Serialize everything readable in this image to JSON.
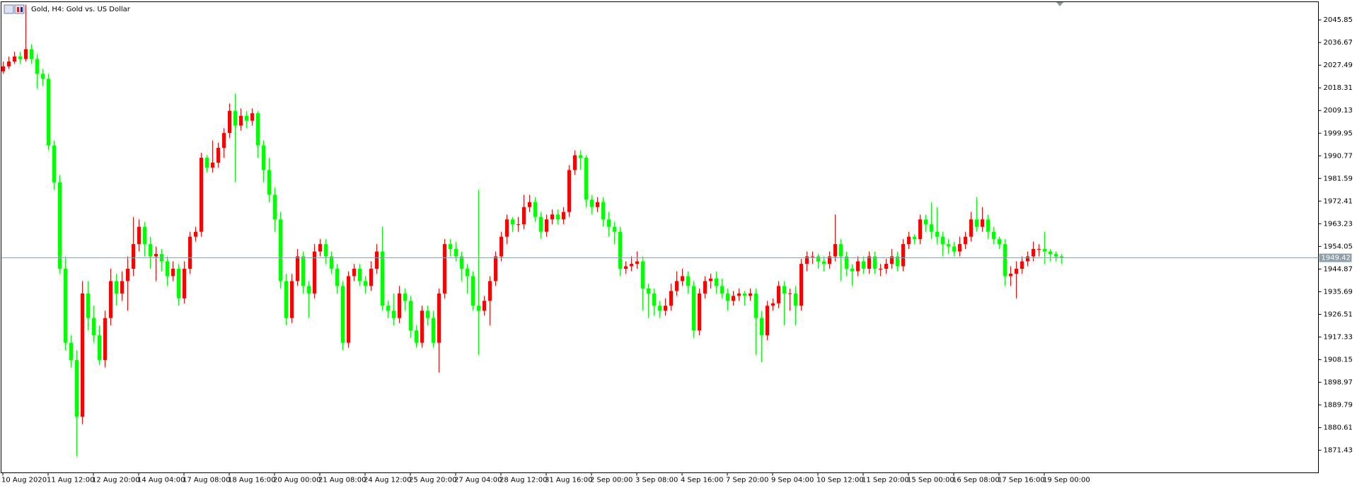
{
  "chart_data": {
    "type": "candlestick",
    "title": "Gold, H4:  Gold vs. US Dollar",
    "up_color": "#ff0000",
    "down_color": "#00ff00",
    "bid": 1949.42,
    "bid_color": "#8fa0ab",
    "ylim": [
      1862.3,
      2053.2
    ],
    "yticks": [
      2045.85,
      2036.67,
      2027.49,
      2018.31,
      2009.13,
      1999.95,
      1990.77,
      1981.59,
      1972.41,
      1963.23,
      1954.05,
      1944.87,
      1935.69,
      1926.51,
      1917.33,
      1908.15,
      1898.97,
      1889.79,
      1880.61,
      1871.43
    ],
    "x_labels": [
      "10 Aug 2020",
      "11 Aug 12:00",
      "12 Aug 20:00",
      "14 Aug 04:00",
      "17 Aug 08:00",
      "18 Aug 16:00",
      "20 Aug 00:00",
      "21 Aug 08:00",
      "24 Aug 12:00",
      "25 Aug 20:00",
      "27 Aug 04:00",
      "28 Aug 12:00",
      "31 Aug 16:00",
      "2 Sep 00:00",
      "3 Sep 08:00",
      "4 Sep 16:00",
      "7 Sep 20:00",
      "9 Sep 04:00",
      "10 Sep 12:00",
      "11 Sep 20:00",
      "15 Sep 00:00",
      "16 Sep 08:00",
      "17 Sep 16:00",
      "19 Sep 00:00"
    ],
    "open": [
      2025,
      2027,
      2029,
      2031,
      2030,
      2034,
      2030,
      2024,
      2022,
      1995,
      1980,
      1945,
      1915,
      1908,
      1885,
      1935,
      1925,
      1918,
      1908,
      1925,
      1940,
      1935,
      1940,
      1945,
      1955,
      1962,
      1955,
      1950,
      1951,
      1948,
      1942,
      1945,
      1933,
      1945,
      1958,
      1960,
      1990,
      1986,
      1988,
      1994,
      2000,
      2009,
      2003,
      2007,
      2005,
      2008,
      1995,
      1985,
      1975,
      1965,
      1940,
      1925,
      1940,
      1950,
      1938,
      1935,
      1952,
      1955,
      1950,
      1945,
      1938,
      1915,
      1942,
      1945,
      1940,
      1938,
      1945,
      1952,
      1930,
      1928,
      1925,
      1935,
      1932,
      1920,
      1915,
      1928,
      1925,
      1915,
      1935,
      1955,
      1953,
      1950,
      1945,
      1942,
      1930,
      1928,
      1932,
      1940,
      1950,
      1958,
      1965,
      1963,
      1963,
      1970,
      1972,
      1966,
      1960,
      1965,
      1967,
      1965,
      1968,
      1985,
      1991,
      1990,
      1973,
      1970,
      1972,
      1965,
      1962,
      1960,
      1945,
      1946,
      1947,
      1948,
      1937,
      1935,
      1930,
      1928,
      1930,
      1936,
      1940,
      1942,
      1938,
      1920,
      1935,
      1940,
      1941,
      1938,
      1935,
      1932,
      1934,
      1935,
      1934,
      1935,
      1925,
      1918,
      1930,
      1931,
      1938,
      1935,
      1935,
      1930,
      1947,
      1950,
      1950,
      1948,
      1947,
      1950,
      1955,
      1950,
      1945,
      1944,
      1948,
      1945,
      1950,
      1945,
      1945,
      1947,
      1950,
      1946,
      1955,
      1958,
      1957,
      1965,
      1963,
      1960,
      1958,
      1955,
      1954,
      1952,
      1955,
      1958,
      1965,
      1962,
      1965,
      1960,
      1957,
      1955,
      1942,
      1943,
      1945,
      1948,
      1950,
      1953,
      1953,
      1952,
      1951,
      1950
    ],
    "high": [
      2029,
      2031,
      2033,
      2033,
      2052,
      2036,
      2032,
      2026,
      2024,
      1997,
      1983,
      1950,
      1918,
      1912,
      1940,
      1940,
      1930,
      1922,
      1928,
      1945,
      1943,
      1944,
      1950,
      1966,
      1965,
      1964,
      1958,
      1954,
      1953,
      1950,
      1948,
      1947,
      1948,
      1960,
      1962,
      1992,
      1991,
      1997,
      1996,
      2002,
      2012,
      2016,
      2010,
      2009,
      2010,
      2009,
      1997,
      1990,
      1978,
      1968,
      1943,
      1943,
      1953,
      1952,
      1940,
      1955,
      1957,
      1957,
      1952,
      1947,
      1940,
      1944,
      1947,
      1947,
      1942,
      1948,
      1955,
      1962,
      1932,
      1935,
      1938,
      1937,
      1934,
      1922,
      1930,
      1930,
      1928,
      1937,
      1957,
      1957,
      1956,
      1952,
      1947,
      1944,
      1977,
      1934,
      1942,
      1952,
      1960,
      1967,
      1966,
      1966,
      1975,
      1975,
      1974,
      1968,
      1967,
      1969,
      1969,
      1970,
      1987,
      1993,
      1993,
      1991,
      1975,
      1974,
      1974,
      1968,
      1964,
      1962,
      1948,
      1950,
      1952,
      1950,
      1939,
      1937,
      1932,
      1933,
      1939,
      1944,
      1945,
      1944,
      1940,
      1937,
      1942,
      1943,
      1944,
      1941,
      1937,
      1936,
      1937,
      1936,
      1937,
      1937,
      1928,
      1932,
      1933,
      1940,
      1940,
      1937,
      1938,
      1949,
      1952,
      1952,
      1951,
      1950,
      1952,
      1967,
      1957,
      1952,
      1947,
      1950,
      1950,
      1952,
      1952,
      1947,
      1949,
      1953,
      1952,
      1957,
      1960,
      1959,
      1967,
      1967,
      1972,
      1970,
      1960,
      1957,
      1956,
      1958,
      1960,
      1968,
      1974,
      1970,
      1967,
      1962,
      1958,
      1957,
      1946,
      1948,
      1950,
      1952,
      1956,
      1955,
      1960,
      1953,
      1952,
      1951
    ],
    "low": [
      2024,
      2026,
      2028,
      2028,
      2029,
      2028,
      2018,
      2019,
      1993,
      1977,
      1943,
      1912,
      1905,
      1869,
      1882,
      1920,
      1915,
      1906,
      1905,
      1922,
      1930,
      1932,
      1928,
      1942,
      1952,
      1950,
      1945,
      1940,
      1944,
      1938,
      1940,
      1930,
      1931,
      1943,
      1956,
      1958,
      1984,
      1984,
      1986,
      1990,
      1998,
      1980,
      2001,
      2002,
      2003,
      1990,
      1980,
      1972,
      1960,
      1937,
      1922,
      1923,
      1938,
      1935,
      1925,
      1933,
      1950,
      1947,
      1943,
      1935,
      1912,
      1913,
      1940,
      1938,
      1935,
      1936,
      1943,
      1928,
      1925,
      1922,
      1923,
      1928,
      1917,
      1913,
      1913,
      1922,
      1913,
      1903,
      1933,
      1950,
      1948,
      1940,
      1935,
      1928,
      1910,
      1926,
      1922,
      1938,
      1948,
      1955,
      1960,
      1960,
      1961,
      1968,
      1964,
      1957,
      1958,
      1963,
      1963,
      1963,
      1966,
      1983,
      1985,
      1970,
      1967,
      1968,
      1962,
      1958,
      1955,
      1942,
      1943,
      1944,
      1945,
      1928,
      1925,
      1926,
      1925,
      1926,
      1928,
      1934,
      1938,
      1935,
      1917,
      1918,
      1933,
      1937,
      1935,
      1933,
      1928,
      1930,
      1932,
      1930,
      1932,
      1910,
      1907,
      1916,
      1928,
      1929,
      1922,
      1928,
      1922,
      1928,
      1944,
      1947,
      1945,
      1944,
      1945,
      1948,
      1940,
      1942,
      1938,
      1942,
      1943,
      1943,
      1943,
      1942,
      1943,
      1945,
      1944,
      1944,
      1953,
      1955,
      1955,
      1960,
      1957,
      1955,
      1950,
      1951,
      1950,
      1950,
      1953,
      1956,
      1960,
      1960,
      1957,
      1955,
      1953,
      1938,
      1938,
      1933,
      1943,
      1946,
      1948,
      1950,
      1947,
      1948,
      1948,
      1947
    ],
    "close": [
      2027,
      2029,
      2031,
      2030,
      2034,
      2030,
      2024,
      2022,
      1995,
      1980,
      1945,
      1915,
      1908,
      1885,
      1935,
      1925,
      1918,
      1908,
      1925,
      1940,
      1935,
      1940,
      1945,
      1955,
      1962,
      1955,
      1950,
      1951,
      1948,
      1942,
      1945,
      1933,
      1945,
      1958,
      1960,
      1990,
      1986,
      1988,
      1994,
      2000,
      2009,
      2003,
      2007,
      2005,
      2008,
      1995,
      1985,
      1975,
      1965,
      1940,
      1925,
      1940,
      1950,
      1938,
      1935,
      1952,
      1955,
      1950,
      1945,
      1938,
      1915,
      1942,
      1945,
      1940,
      1938,
      1945,
      1952,
      1930,
      1928,
      1925,
      1935,
      1932,
      1920,
      1915,
      1928,
      1925,
      1915,
      1935,
      1955,
      1953,
      1950,
      1945,
      1942,
      1930,
      1928,
      1932,
      1940,
      1950,
      1958,
      1965,
      1963,
      1963,
      1970,
      1972,
      1966,
      1960,
      1965,
      1967,
      1965,
      1968,
      1985,
      1991,
      1990,
      1973,
      1970,
      1972,
      1965,
      1962,
      1960,
      1945,
      1946,
      1947,
      1948,
      1937,
      1935,
      1930,
      1928,
      1930,
      1936,
      1940,
      1942,
      1938,
      1920,
      1935,
      1940,
      1941,
      1938,
      1935,
      1932,
      1934,
      1935,
      1934,
      1935,
      1925,
      1918,
      1930,
      1931,
      1938,
      1935,
      1935,
      1930,
      1947,
      1950,
      1950,
      1948,
      1947,
      1950,
      1955,
      1950,
      1945,
      1944,
      1948,
      1945,
      1950,
      1945,
      1945,
      1947,
      1950,
      1946,
      1955,
      1958,
      1957,
      1965,
      1963,
      1960,
      1958,
      1955,
      1954,
      1952,
      1955,
      1958,
      1965,
      1962,
      1965,
      1960,
      1957,
      1955,
      1942,
      1943,
      1945,
      1948,
      1950,
      1953,
      1953,
      1952,
      1951,
      1950,
      1949.42
    ]
  }
}
